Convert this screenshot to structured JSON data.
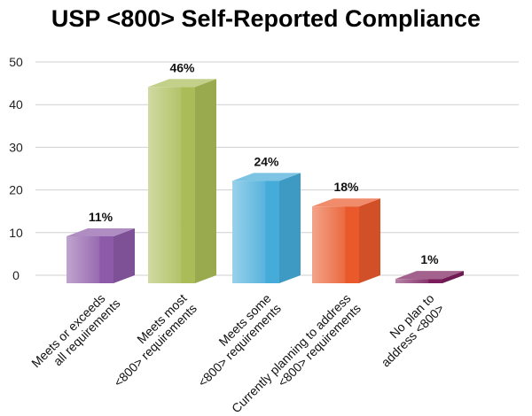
{
  "chart_data": {
    "type": "bar",
    "title": "USP <800> Self-Reported Compliance",
    "categories": [
      [
        "Meets or exceeds",
        "all requirements"
      ],
      [
        "Meets most",
        "<800> requirements"
      ],
      [
        "Meets some",
        "<800> requirements"
      ],
      [
        "Currently planning to address",
        "<800> requirements"
      ],
      [
        "No plan to",
        "address <800>"
      ]
    ],
    "values": [
      11,
      46,
      24,
      18,
      1
    ],
    "data_labels": [
      "11%",
      "46%",
      "24%",
      "18%",
      "1%"
    ],
    "colors": [
      "#8c5aa8",
      "#a9bc57",
      "#45abd9",
      "#e9592b",
      "#7b1d5c"
    ],
    "ylim": [
      0,
      50
    ],
    "yticks": [
      0,
      10,
      20,
      30,
      40,
      50
    ],
    "xlabel": "",
    "ylabel": "",
    "grid": true,
    "style": "3d"
  }
}
